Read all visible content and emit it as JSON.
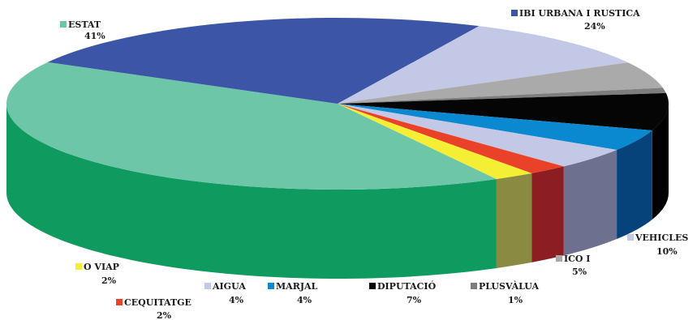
{
  "chart_data": {
    "type": "pie",
    "style": "3d-exploded",
    "legend": "labels next to slices",
    "slices": [
      {
        "label": "ESTAT",
        "value": 41,
        "value_label": "41%",
        "color": "#6ec6a8",
        "side_color": "#0f9a5f"
      },
      {
        "label": "IBI URBANA I RUSTICA",
        "value": 24,
        "value_label": "24%",
        "color": "#3c55a6",
        "side_color": "#1e3685"
      },
      {
        "label": "VEHICLES",
        "value": 10,
        "value_label": "10%",
        "color": "#c3c8e6",
        "side_color": "#6e7090"
      },
      {
        "label": "ICO I",
        "value": 5,
        "value_label": "5%",
        "color": "#aaaaaa",
        "side_color": "#5c5f5a"
      },
      {
        "label": "PLUSVÀLUA",
        "value": 1,
        "value_label": "1%",
        "color": "#7e7e7e",
        "side_color": "#3f3f3f"
      },
      {
        "label": "DIPUTACIÓ",
        "value": 7,
        "value_label": "7%",
        "color": "#050505",
        "side_color": "#000000"
      },
      {
        "label": "MARJAL",
        "value": 4,
        "value_label": "4%",
        "color": "#0a88d0",
        "side_color": "#05437a"
      },
      {
        "label": "AIGUA",
        "value": 4,
        "value_label": "4%",
        "color": "#c3c8e6",
        "side_color": "#6e7090"
      },
      {
        "label": "CEQUITATGE",
        "value": 2,
        "value_label": "2%",
        "color": "#ea4228",
        "side_color": "#8c1d23"
      },
      {
        "label": "O VIAP",
        "value": 2,
        "value_label": "2%",
        "color": "#f4ee34",
        "side_color": "#8b8a42"
      }
    ]
  }
}
